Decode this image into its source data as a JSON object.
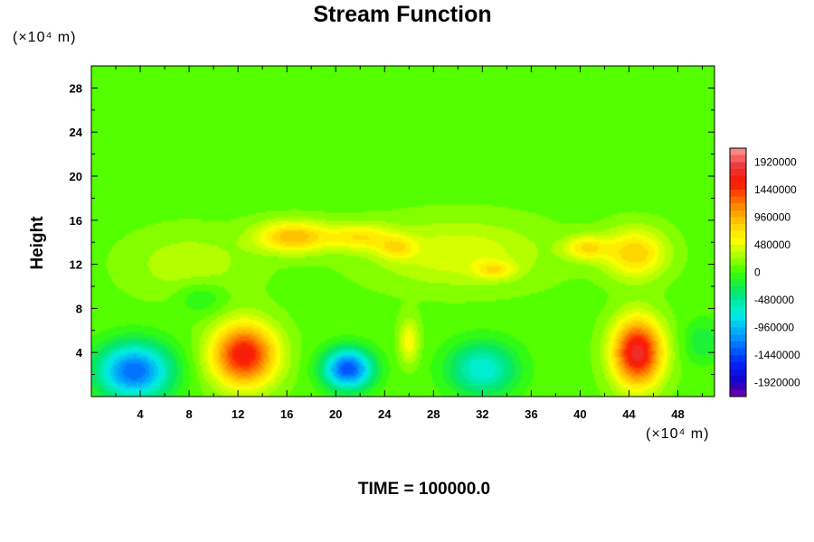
{
  "chart_data": {
    "type": "heatmap",
    "title": "Stream Function",
    "ylabel": "Height",
    "y_unit_label": "(×10⁴ m)",
    "x_unit_label": "(×10⁴ m)",
    "footer": "TIME = 100000.0",
    "xlim": [
      0,
      51
    ],
    "ylim": [
      0,
      30
    ],
    "x_ticks": [
      4,
      8,
      12,
      16,
      20,
      24,
      28,
      32,
      36,
      40,
      44,
      48
    ],
    "y_ticks": [
      4,
      8,
      12,
      16,
      20,
      24,
      28
    ],
    "x_tick_labels": [
      "4",
      "8",
      "12",
      "16",
      "20",
      "24",
      "28",
      "32",
      "36",
      "40",
      "44",
      "48"
    ],
    "y_tick_labels": [
      "4",
      "8",
      "12",
      "16",
      "20",
      "24",
      "28"
    ],
    "colorbar": {
      "min": -2160000,
      "max": 2160000,
      "labels": [
        "1920000",
        "1440000",
        "960000",
        "480000",
        "0",
        "-480000",
        "-960000",
        "-1440000",
        "-1920000"
      ],
      "label_values": [
        1920000,
        1440000,
        960000,
        480000,
        0,
        -480000,
        -960000,
        -1440000,
        -1920000
      ]
    },
    "background_value": 80000,
    "features": [
      {
        "x": 3.5,
        "y": 2.3,
        "value": -1400000,
        "sx": 3.0,
        "sy": 2.5
      },
      {
        "x": 12.5,
        "y": 3.8,
        "value": 1550000,
        "sx": 2.6,
        "sy": 2.8
      },
      {
        "x": 21.0,
        "y": 2.5,
        "value": -1500000,
        "sx": 2.0,
        "sy": 1.8
      },
      {
        "x": 32.0,
        "y": 2.5,
        "value": -800000,
        "sx": 2.8,
        "sy": 2.4
      },
      {
        "x": 44.7,
        "y": 4.0,
        "value": 1700000,
        "sx": 2.0,
        "sy": 3.0
      },
      {
        "x": 16.5,
        "y": 14.5,
        "value": 850000,
        "sx": 3.0,
        "sy": 1.4
      },
      {
        "x": 22.0,
        "y": 14.5,
        "value": 550000,
        "sx": 2.6,
        "sy": 1.2
      },
      {
        "x": 25.0,
        "y": 13.5,
        "value": 450000,
        "sx": 1.5,
        "sy": 1.0
      },
      {
        "x": 33.0,
        "y": 11.5,
        "value": 450000,
        "sx": 1.6,
        "sy": 0.8
      },
      {
        "x": 40.5,
        "y": 13.5,
        "value": 600000,
        "sx": 1.8,
        "sy": 1.1
      },
      {
        "x": 44.5,
        "y": 13.0,
        "value": 750000,
        "sx": 2.5,
        "sy": 2.2
      },
      {
        "x": 30.0,
        "y": 13.0,
        "value": 380000,
        "sx": 7.0,
        "sy": 3.0
      },
      {
        "x": 8.0,
        "y": 12.0,
        "value": 250000,
        "sx": 5.0,
        "sy": 3.0
      },
      {
        "x": 26.0,
        "y": 5.0,
        "value": 500000,
        "sx": 0.8,
        "sy": 2.0
      },
      {
        "x": 9.0,
        "y": 9.0,
        "value": -250000,
        "sx": 2.0,
        "sy": 1.5
      },
      {
        "x": 50.0,
        "y": 5.0,
        "value": -300000,
        "sx": 1.5,
        "sy": 2.0
      }
    ]
  }
}
